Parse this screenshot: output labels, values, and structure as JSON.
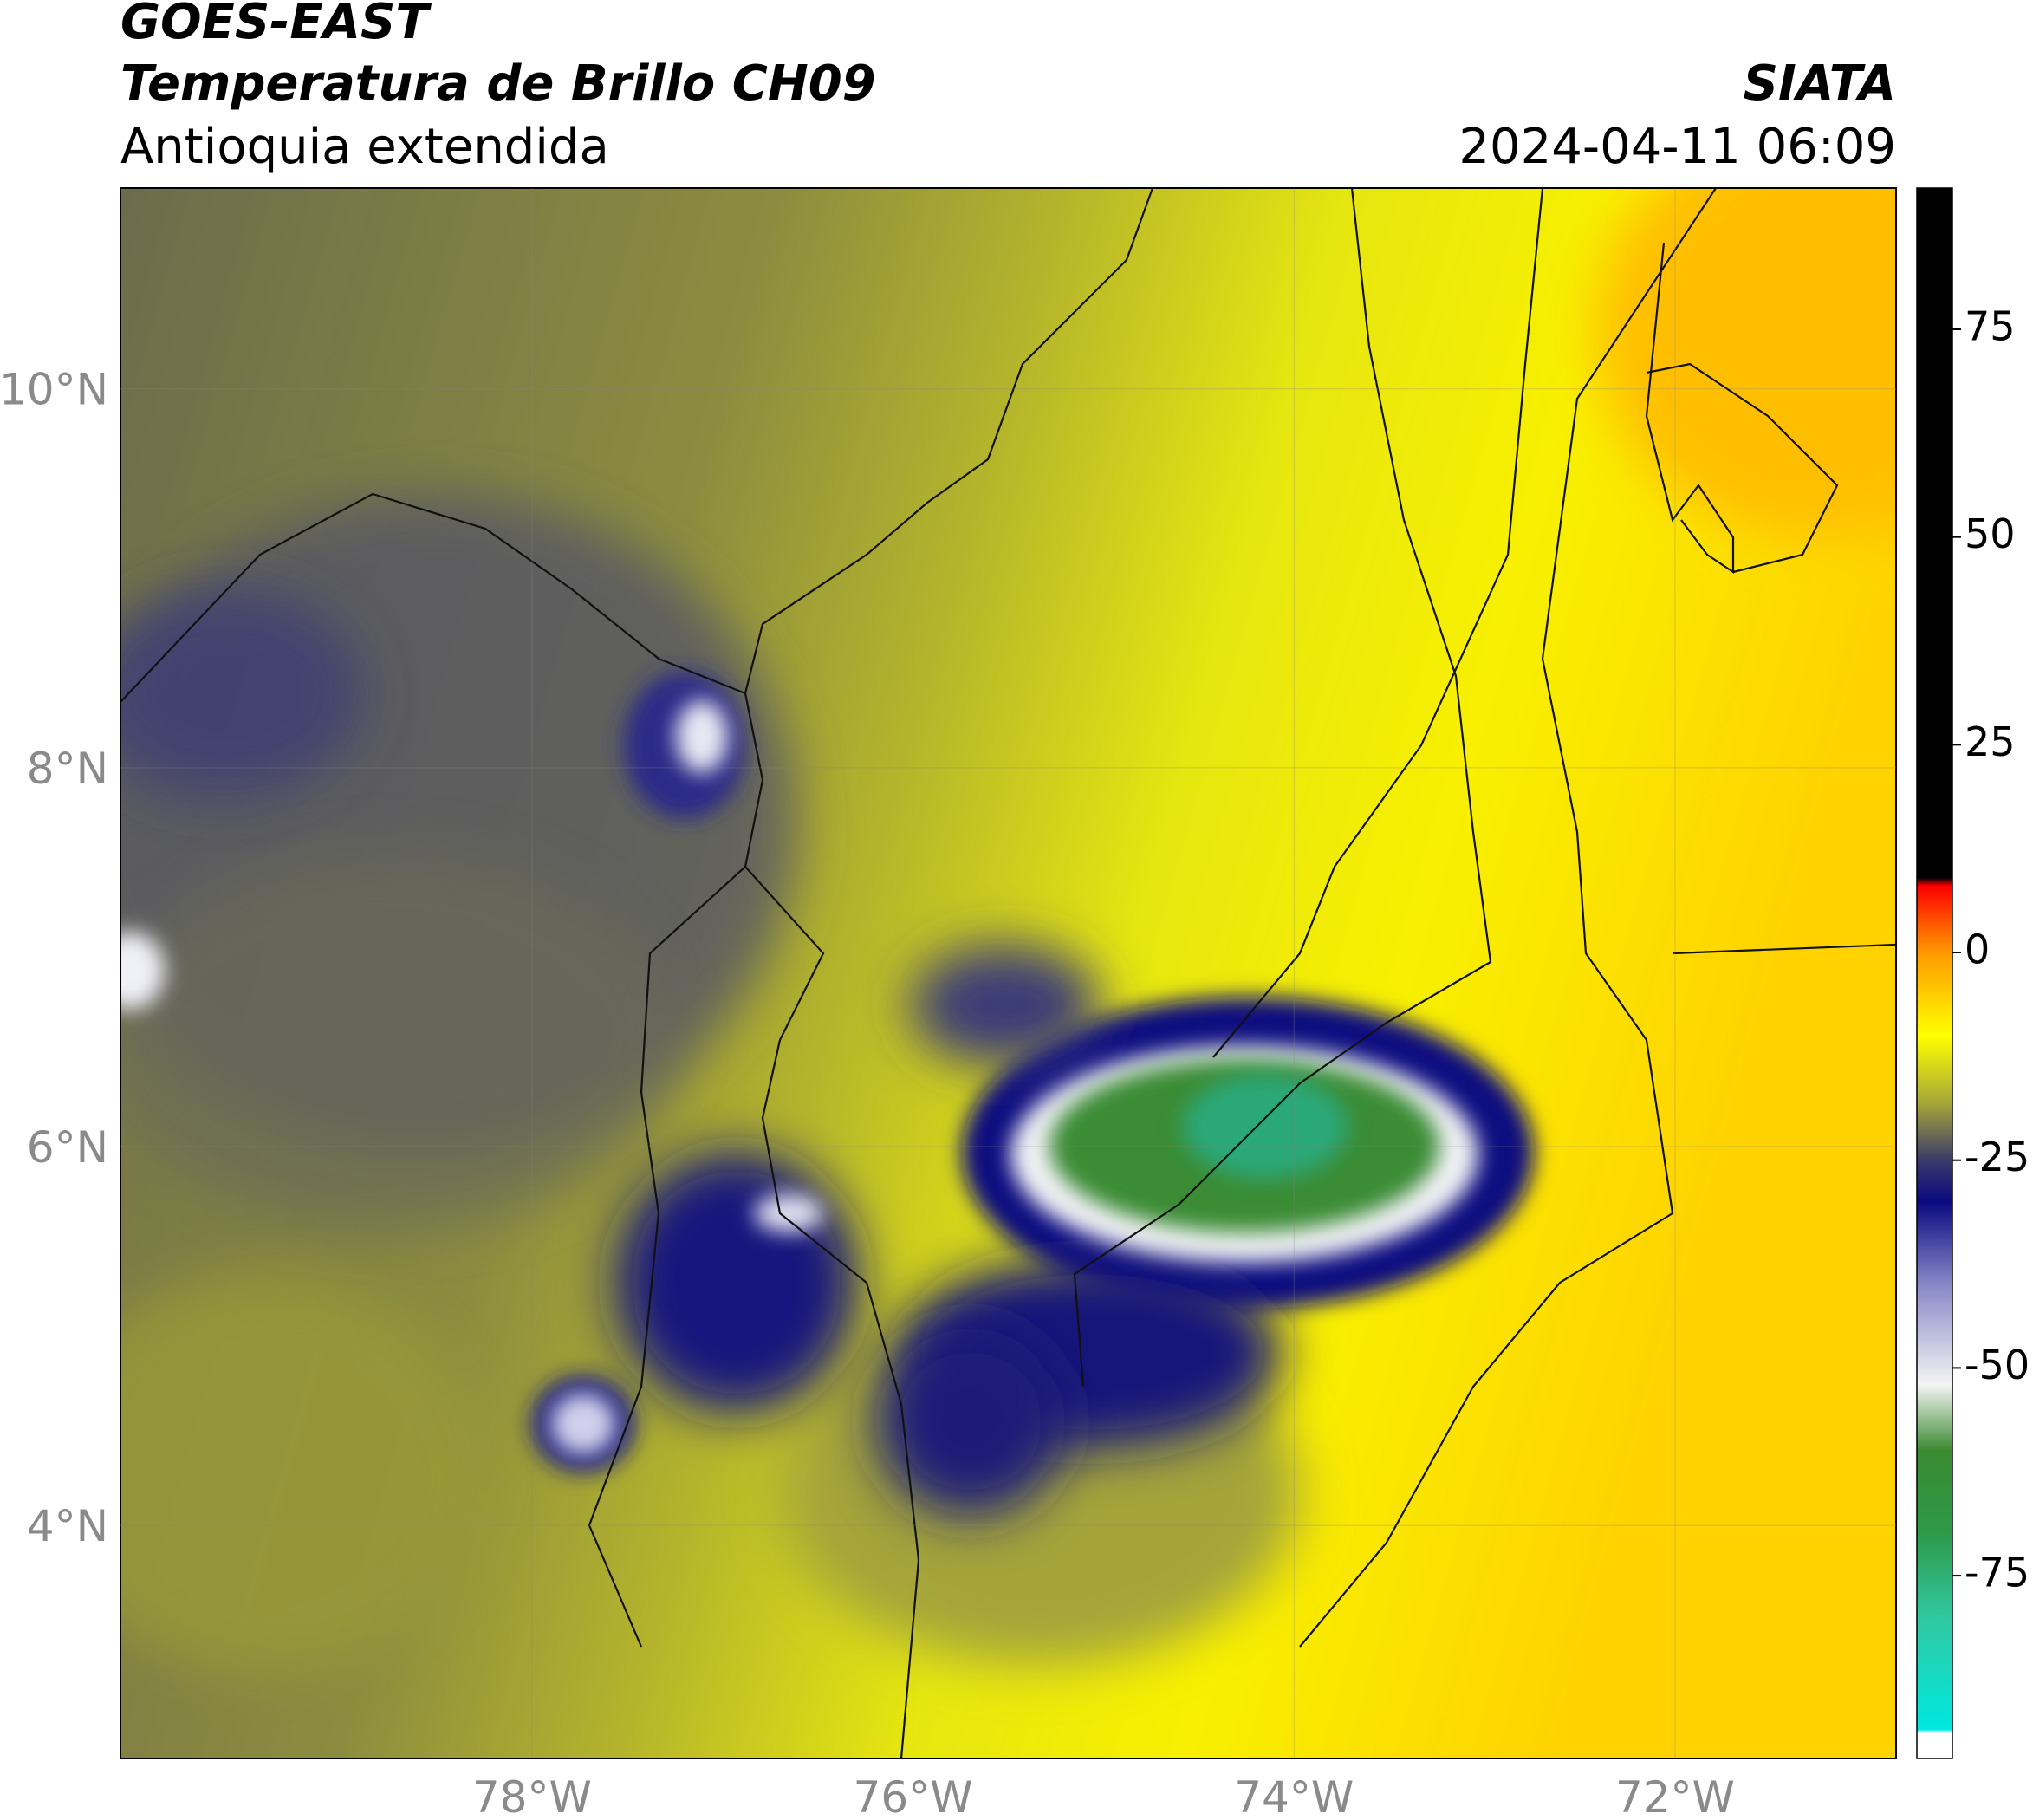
{
  "header": {
    "title": "GOES-EAST",
    "subtitle": "Temperatura de Brillo CH09",
    "region": "Antioquia extendida",
    "source": "SIATA",
    "datetime": "2024-04-11 06:09"
  },
  "map": {
    "type": "map",
    "xlim": [
      -80.16,
      -70.84
    ],
    "ylim": [
      2.77,
      11.06
    ],
    "xticks": [
      {
        "value": -78,
        "label": "78°W"
      },
      {
        "value": -76,
        "label": "76°W"
      },
      {
        "value": -74,
        "label": "74°W"
      },
      {
        "value": -72,
        "label": "72°W"
      }
    ],
    "yticks": [
      {
        "value": 10,
        "label": "10°N"
      },
      {
        "value": 8,
        "label": "8°N"
      },
      {
        "value": 6,
        "label": "6°N"
      },
      {
        "value": 4,
        "label": "4°N"
      }
    ],
    "grid": true
  },
  "colorbar": {
    "clim": [
      -97,
      92
    ],
    "ticks": [
      75,
      50,
      25,
      0,
      -25,
      -50,
      -75
    ],
    "colormap": [
      {
        "value": -97,
        "color": "#ffffff"
      },
      {
        "value": -94,
        "color": "#ffffff"
      },
      {
        "value": -93.5,
        "color": "#00e8e0"
      },
      {
        "value": -80,
        "color": "#30c8a0"
      },
      {
        "value": -70,
        "color": "#2e9a4a"
      },
      {
        "value": -60,
        "color": "#3a8a30"
      },
      {
        "value": -52,
        "color": "#f4f4f4"
      },
      {
        "value": -40,
        "color": "#8888c8"
      },
      {
        "value": -30,
        "color": "#0a0a80"
      },
      {
        "value": -25,
        "color": "#3a3a6a"
      },
      {
        "value": -18,
        "color": "#a8a838"
      },
      {
        "value": -10,
        "color": "#ffff00"
      },
      {
        "value": 0,
        "color": "#ff9900"
      },
      {
        "value": 8,
        "color": "#ff0000"
      },
      {
        "value": 9,
        "color": "#000000"
      },
      {
        "value": 92,
        "color": "#000000"
      }
    ]
  }
}
